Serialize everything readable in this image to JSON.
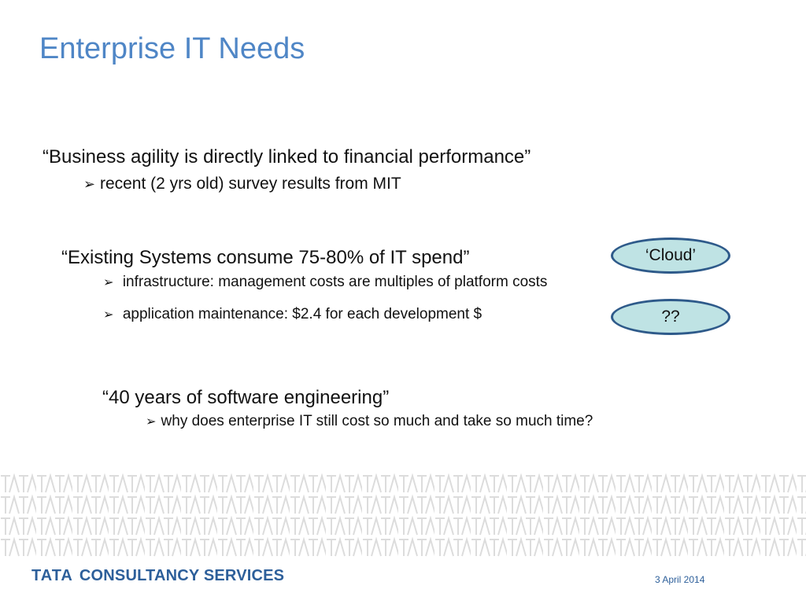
{
  "slide": {
    "title": "Enterprise IT Needs",
    "points": [
      {
        "quote": "“Business agility is directly linked to financial performance”",
        "subs": [
          "recent (2 yrs old) survey results from MIT"
        ]
      },
      {
        "quote": "“Existing Systems consume 75-80% of IT spend”",
        "subs": [
          "infrastructure: management costs are multiples of platform costs",
          "application maintenance: $2.4 for each development $"
        ]
      },
      {
        "quote": "“40 years of software engineering”",
        "subs": [
          "why does enterprise IT still cost so much and take so much time?"
        ]
      }
    ],
    "callouts": [
      "‘Cloud’",
      "??"
    ]
  },
  "footer": {
    "logo_primary": "TATA",
    "logo_secondary": "CONSULTANCY SERVICES",
    "date": "3 April 2014"
  },
  "colors": {
    "title": "#4f86c6",
    "oval_fill": "#bfe3e4",
    "oval_border": "#2e5a8a",
    "brand": "#2d5f9a",
    "pattern": "#dcdcdc"
  },
  "icons": {
    "bullet": "arrow-bullet-icon",
    "pattern_glyph": "TATA"
  }
}
